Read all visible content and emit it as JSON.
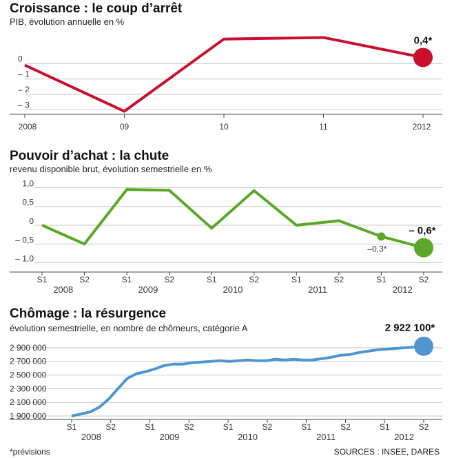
{
  "chart_data": [
    {
      "type": "line",
      "title": "Croissance : le coup d’arrêt",
      "subtitle": "PIB, évolution annuelle en %",
      "x_labels": [
        "2008",
        "09",
        "10",
        "11",
        "2012"
      ],
      "values": [
        -0.1,
        -3.1,
        1.6,
        1.7,
        0.4
      ],
      "y_ticks": [
        0,
        -1,
        -2,
        -3
      ],
      "y_tick_labels": [
        "0",
        "– 1",
        "– 2",
        "– 3"
      ],
      "ylim": [
        -3.3,
        1.9
      ],
      "callout": "0,4*",
      "color": "#c8102e"
    },
    {
      "type": "line",
      "title": "Pouvoir d’achat : la chute",
      "subtitle": "revenu disponible brut, évolution semestrielle en %",
      "x_labels": [
        "S1",
        "S2",
        "S1",
        "S2",
        "S1",
        "S2",
        "S1",
        "S2",
        "S1",
        "S2"
      ],
      "year_labels": [
        "2008",
        "2009",
        "2010",
        "2011",
        "2012"
      ],
      "values": [
        0.0,
        -0.5,
        0.95,
        0.93,
        -0.08,
        0.92,
        0.0,
        0.12,
        -0.3,
        -0.6
      ],
      "y_ticks": [
        1.0,
        0.5,
        0,
        -0.5,
        -1.0
      ],
      "y_tick_labels": [
        "1,0",
        "0,5",
        "0",
        "– 0,5",
        "– 1,0"
      ],
      "ylim": [
        -1.1,
        1.1
      ],
      "callout": "– 0,6*",
      "secondary_callout": "–0,3*",
      "color": "#5ba829"
    },
    {
      "type": "line",
      "title": "Chômage : la résurgence",
      "subtitle": "évolution semestrielle, en nombre de chômeurs, catégorie A",
      "x_labels": [
        "S1",
        "S2",
        "S1",
        "S2",
        "S1",
        "S2",
        "S1",
        "S2",
        "S1",
        "S2"
      ],
      "year_labels": [
        "2008",
        "2009",
        "2010",
        "2011",
        "2012"
      ],
      "x": [
        0,
        0.5,
        1,
        1.5,
        2,
        2.5,
        3,
        3.5,
        4,
        4.5,
        5,
        5.5,
        6,
        6.5,
        7,
        7.5,
        8,
        8.5,
        9,
        9.5,
        10,
        10.5,
        11,
        11.5,
        12,
        12.5,
        13,
        13.5,
        14,
        14.5,
        15,
        15.5,
        16,
        16.5,
        17,
        17.5,
        18,
        18.5,
        19
      ],
      "values": [
        1900000,
        1930000,
        1960000,
        2030000,
        2150000,
        2300000,
        2450000,
        2520000,
        2550000,
        2590000,
        2640000,
        2660000,
        2660000,
        2680000,
        2690000,
        2700000,
        2710000,
        2700000,
        2710000,
        2720000,
        2710000,
        2710000,
        2730000,
        2720000,
        2730000,
        2720000,
        2720000,
        2740000,
        2760000,
        2790000,
        2800000,
        2830000,
        2850000,
        2870000,
        2880000,
        2890000,
        2900000,
        2910000,
        2922100
      ],
      "y_ticks": [
        2900000,
        2700000,
        2500000,
        2300000,
        2100000,
        1900000
      ],
      "y_tick_labels": [
        "2 900 000",
        "2 700 000",
        "2 500 000",
        "2 300 000",
        "2 100 000",
        "1 900 000"
      ],
      "ylim": [
        1850000,
        3000000
      ],
      "callout": "2 922 100*",
      "color": "#4f96d1"
    }
  ],
  "footer": {
    "note": "*prévisions",
    "sources": "SOURCES : INSEE, DARES"
  }
}
